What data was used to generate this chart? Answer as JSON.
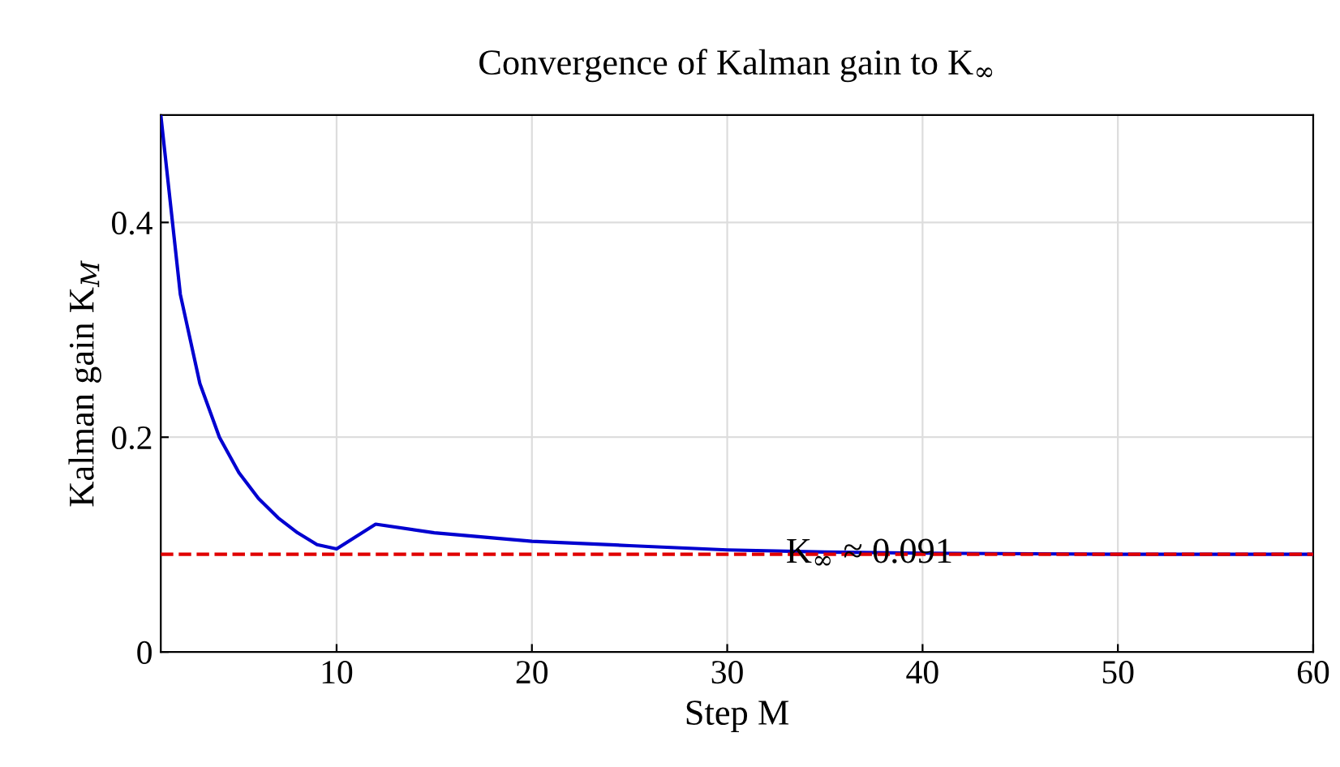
{
  "chart_data": {
    "type": "line",
    "title": "Convergence of Kalman gain to K$_{∞}$",
    "xlabel": "Step M",
    "ylabel": "Kalman gain K$_{M}$",
    "x": [
      1,
      2,
      3,
      4,
      5,
      6,
      7,
      8,
      9,
      10,
      12,
      15,
      20,
      25,
      30,
      35,
      40,
      50,
      60
    ],
    "series": [
      {
        "color": "#0000d0",
        "values": [
          0.5,
          0.333,
          0.25,
          0.2,
          0.167,
          0.143,
          0.125,
          0.111,
          0.1,
          0.096,
          0.119,
          0.111,
          0.103,
          0.099,
          0.095,
          0.093,
          0.092,
          0.091,
          0.091
        ]
      }
    ],
    "xlim": [
      1,
      60
    ],
    "ylim": [
      0,
      0.5
    ],
    "xticks": [
      10,
      20,
      30,
      40,
      50,
      60
    ],
    "yticks": [
      0,
      0.2,
      0.4
    ],
    "ref_lines": [
      {
        "axis": "y",
        "value": 0.091,
        "label": "K$_{∞}$ ≈ 0.091",
        "color": "#e00000",
        "line_style": "dashed"
      }
    ],
    "grid": true,
    "legend": false,
    "marker": "none",
    "line_style": "solid"
  }
}
